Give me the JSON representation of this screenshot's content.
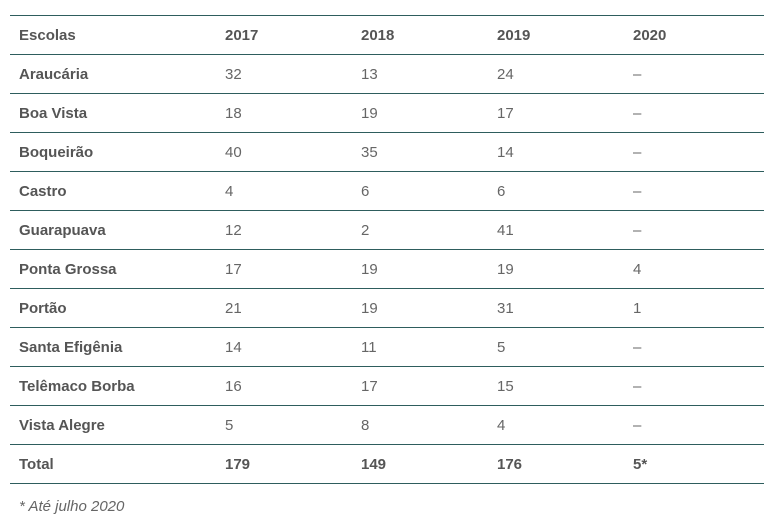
{
  "table": {
    "headers": [
      "Escolas",
      "2017",
      "2018",
      "2019",
      "2020"
    ],
    "rows": [
      [
        "Araucária",
        "32",
        "13",
        "24",
        "–"
      ],
      [
        "Boa Vista",
        "18",
        "19",
        "17",
        "–"
      ],
      [
        "Boqueirão",
        "40",
        "35",
        "14",
        "–"
      ],
      [
        "Castro",
        "4",
        "6",
        "6",
        "–"
      ],
      [
        "Guarapuava",
        "12",
        "2",
        "41",
        "–"
      ],
      [
        "Ponta Grossa",
        "17",
        "19",
        "19",
        "4"
      ],
      [
        "Portão",
        "21",
        "19",
        "31",
        "1"
      ],
      [
        "Santa Efigênia",
        "14",
        "11",
        "5",
        "–"
      ],
      [
        "Telêmaco Borba",
        "16",
        "17",
        "15",
        "–"
      ],
      [
        "Vista Alegre",
        "5",
        "8",
        "4",
        "–"
      ]
    ],
    "total": [
      "Total",
      "179",
      "149",
      "176",
      "5*"
    ]
  },
  "footnote": "* Até julho 2020"
}
